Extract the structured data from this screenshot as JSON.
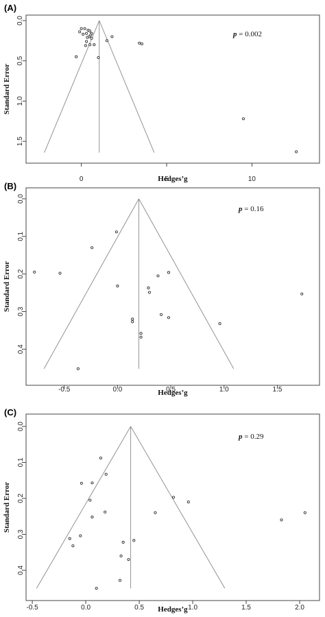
{
  "chart_data": [
    {
      "panel_label": "(A)",
      "type": "scatter",
      "subtype": "funnel",
      "xlabel": "Hedges’g",
      "ylabel": "Standard Error",
      "xlim": [
        -3.0,
        13.8
      ],
      "ylim": [
        0.0,
        1.72
      ],
      "y_reversed": true,
      "xticks": [
        0,
        5,
        10
      ],
      "xtick_labels": [
        "0",
        "5",
        "10"
      ],
      "yticks": [
        0.0,
        0.5,
        1.0,
        1.5
      ],
      "ytick_labels": [
        "0.0",
        "0.5",
        "1.0",
        "1.5"
      ],
      "annotation": {
        "italic": "p",
        "text": " = 0.002"
      },
      "funnel_center": 1.05,
      "funnel_base_se": 1.64,
      "funnel_base_x": [
        -2.17,
        4.27
      ],
      "grid": false,
      "x": [
        0.0,
        0.2,
        0.4,
        0.5,
        0.6,
        -0.1,
        0.1,
        0.3,
        0.55,
        0.45,
        0.35,
        0.6,
        0.3,
        0.25,
        0.5,
        0.75,
        1.5,
        1.8,
        3.4,
        3.55,
        -0.3,
        1.0,
        9.5,
        12.6
      ],
      "y": [
        0.1,
        0.1,
        0.12,
        0.13,
        0.16,
        0.14,
        0.17,
        0.16,
        0.18,
        0.2,
        0.21,
        0.22,
        0.26,
        0.31,
        0.3,
        0.3,
        0.25,
        0.2,
        0.28,
        0.29,
        0.45,
        0.46,
        1.22,
        1.63
      ]
    },
    {
      "panel_label": "(B)",
      "type": "scatter",
      "subtype": "funnel",
      "xlabel": "Hedges’g",
      "ylabel": "Standard Error",
      "xlim": [
        -0.82,
        1.87
      ],
      "ylim": [
        0.0,
        0.465
      ],
      "y_reversed": true,
      "xticks": [
        -0.5,
        0.0,
        0.5,
        1.0,
        1.5
      ],
      "xtick_labels": [
        "-0.5",
        "0.0",
        "0.5",
        "1.0",
        "1.5"
      ],
      "yticks": [
        0.0,
        0.1,
        0.2,
        0.3,
        0.4
      ],
      "ytick_labels": [
        "0.0",
        "0.1",
        "0.2",
        "0.3",
        "0.4"
      ],
      "annotation": {
        "italic": "p",
        "text": " = 0.16"
      },
      "funnel_center": 0.2,
      "funnel_base_se": 0.452,
      "funnel_base_x": [
        -0.69,
        1.09
      ],
      "grid": false,
      "x": [
        -0.78,
        -0.54,
        -0.24,
        -0.01,
        0.0,
        0.29,
        0.3,
        0.38,
        0.48,
        0.41,
        0.48,
        0.14,
        0.14,
        0.22,
        0.22,
        0.96,
        1.73,
        -0.37
      ],
      "y": [
        0.195,
        0.198,
        0.13,
        0.088,
        0.232,
        0.237,
        0.249,
        0.205,
        0.196,
        0.308,
        0.316,
        0.32,
        0.327,
        0.358,
        0.368,
        0.332,
        0.253,
        0.452
      ]
    },
    {
      "panel_label": "(C)",
      "type": "scatter",
      "subtype": "funnel",
      "xlabel": "Hedges’g",
      "ylabel": "Standard Error",
      "xlim": [
        -0.52,
        2.16
      ],
      "ylim": [
        0.0,
        0.465
      ],
      "y_reversed": true,
      "xticks": [
        -0.5,
        0.0,
        0.5,
        1.0,
        1.5,
        2.0
      ],
      "xtick_labels": [
        "-0.5",
        "0.0",
        "0.5",
        "1.0",
        "1.5",
        "2.0"
      ],
      "yticks": [
        0.0,
        0.1,
        0.2,
        0.3,
        0.4
      ],
      "ytick_labels": [
        "0.0",
        "0.1",
        "0.2",
        "0.3",
        "0.4"
      ],
      "annotation": {
        "italic": "p",
        "text": " = 0.29"
      },
      "funnel_center": 0.42,
      "funnel_base_se": 0.45,
      "funnel_base_x": [
        -0.46,
        1.3
      ],
      "grid": false,
      "x": [
        0.14,
        0.19,
        -0.04,
        0.06,
        0.04,
        0.18,
        0.06,
        -0.05,
        -0.15,
        -0.12,
        0.35,
        0.45,
        0.33,
        0.4,
        0.32,
        0.1,
        0.82,
        0.96,
        0.65,
        1.83,
        2.05
      ],
      "y": [
        0.088,
        0.133,
        0.158,
        0.157,
        0.205,
        0.238,
        0.252,
        0.304,
        0.312,
        0.332,
        0.322,
        0.317,
        0.36,
        0.37,
        0.428,
        0.45,
        0.197,
        0.21,
        0.24,
        0.26,
        0.24
      ]
    }
  ]
}
